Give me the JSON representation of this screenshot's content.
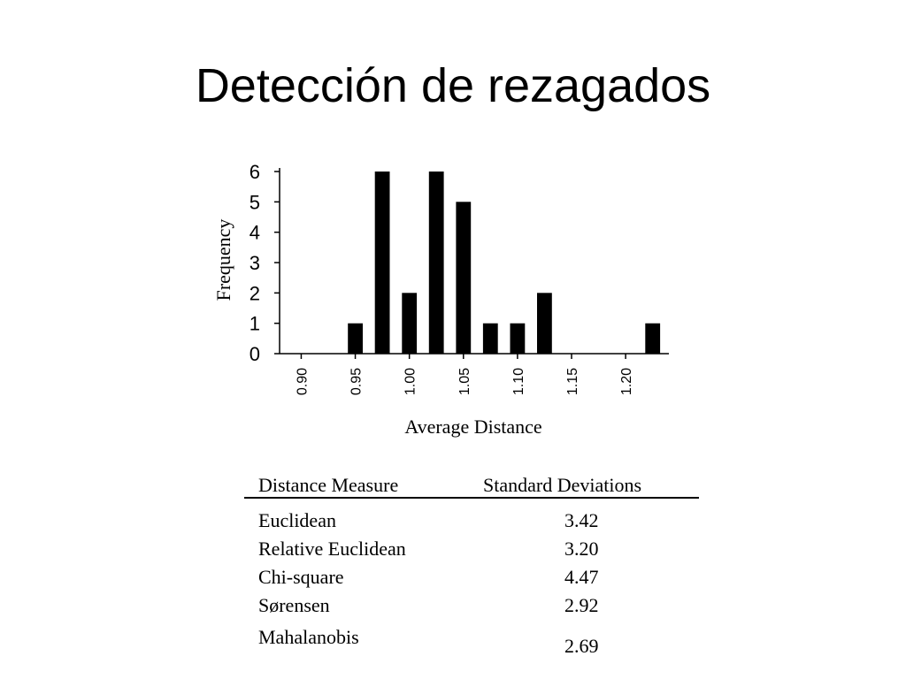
{
  "slide": {
    "title": "Detección de rezagados"
  },
  "chart_data": {
    "type": "bar",
    "xlabel": "Average Distance",
    "ylabel": "Frequency",
    "x_ticks": [
      "0.90",
      "0.95",
      "1.00",
      "1.05",
      "1.10",
      "1.15",
      "1.20"
    ],
    "y_ticks": [
      "0",
      "1",
      "2",
      "3",
      "4",
      "5",
      "6"
    ],
    "xlim": [
      0.88,
      1.24
    ],
    "ylim": [
      0,
      6
    ],
    "bar_centers": [
      0.95,
      0.975,
      1.0,
      1.025,
      1.05,
      1.075,
      1.1,
      1.125,
      1.225
    ],
    "values": [
      1,
      6,
      2,
      6,
      5,
      1,
      1,
      2,
      1
    ],
    "grid": false,
    "legend": "none"
  },
  "table": {
    "headers": [
      "Distance Measure",
      "Standard Deviations"
    ],
    "rows": [
      [
        "Euclidean",
        "3.42"
      ],
      [
        "Relative Euclidean",
        "3.20"
      ],
      [
        "Chi-square",
        "4.47"
      ],
      [
        "Sørensen",
        "2.92"
      ],
      [
        "Mahalanobis",
        "2.69"
      ]
    ]
  }
}
